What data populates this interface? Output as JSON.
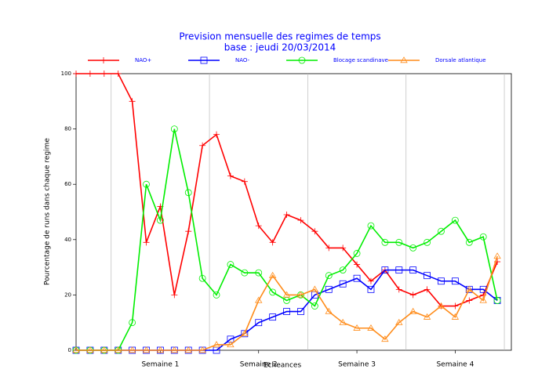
{
  "chart_data": {
    "type": "line",
    "title": "Prevision mensuelle des regimes de temps",
    "subtitle": "base : jeudi 20/03/2014",
    "x_label": "Echeances",
    "y_label": "Pourcentage de runs dans chaque regime",
    "x": [
      0,
      1,
      2,
      3,
      4,
      5,
      6,
      7,
      8,
      9,
      10,
      11,
      12,
      13,
      14,
      15,
      16,
      17,
      18,
      19,
      20,
      21,
      22,
      23,
      24,
      25,
      26,
      27,
      28,
      29,
      30
    ],
    "xlim": [
      0,
      31
    ],
    "xticks": [
      {
        "value": 6,
        "label": "Semaine 1"
      },
      {
        "value": 13,
        "label": "Semaine 2"
      },
      {
        "value": 20,
        "label": "Semaine 3"
      },
      {
        "value": 27,
        "label": "Semaine 4"
      }
    ],
    "xgrid": [
      2.5,
      9.5,
      16.5,
      23.5,
      30.5
    ],
    "ylim": [
      0,
      100
    ],
    "yticks": [
      0,
      20,
      40,
      60,
      80,
      100
    ],
    "series": [
      {
        "name": "NAO+",
        "color": "#ff0000",
        "marker": "plus",
        "values": [
          100,
          100,
          100,
          100,
          90,
          39,
          52,
          20,
          43,
          74,
          78,
          63,
          61,
          45,
          39,
          49,
          47,
          43,
          37,
          37,
          31,
          25,
          29,
          22,
          20,
          22,
          16,
          16,
          18,
          20,
          32
        ]
      },
      {
        "name": "NAO-",
        "color": "#0000ff",
        "marker": "square",
        "values": [
          0,
          0,
          0,
          0,
          0,
          0,
          0,
          0,
          0,
          0,
          0,
          4,
          6,
          10,
          12,
          14,
          14,
          20,
          22,
          24,
          26,
          22,
          29,
          29,
          29,
          27,
          25,
          25,
          22,
          22,
          18
        ]
      },
      {
        "name": "Blocage scandinave",
        "color": "#00ee00",
        "marker": "circle",
        "values": [
          0,
          0,
          0,
          0,
          10,
          60,
          47,
          80,
          57,
          26,
          20,
          31,
          28,
          28,
          21,
          18,
          20,
          16,
          27,
          29,
          35,
          45,
          39,
          39,
          37,
          39,
          43,
          47,
          39,
          41,
          18
        ]
      },
      {
        "name": "Dorsale atlantique",
        "color": "#ff8c1a",
        "marker": "triangle",
        "values": [
          0,
          0,
          0,
          0,
          0,
          0,
          0,
          0,
          0,
          0,
          2,
          2,
          6,
          18,
          27,
          20,
          20,
          22,
          14,
          10,
          8,
          8,
          4,
          10,
          14,
          12,
          16,
          12,
          22,
          18,
          34
        ]
      }
    ]
  }
}
